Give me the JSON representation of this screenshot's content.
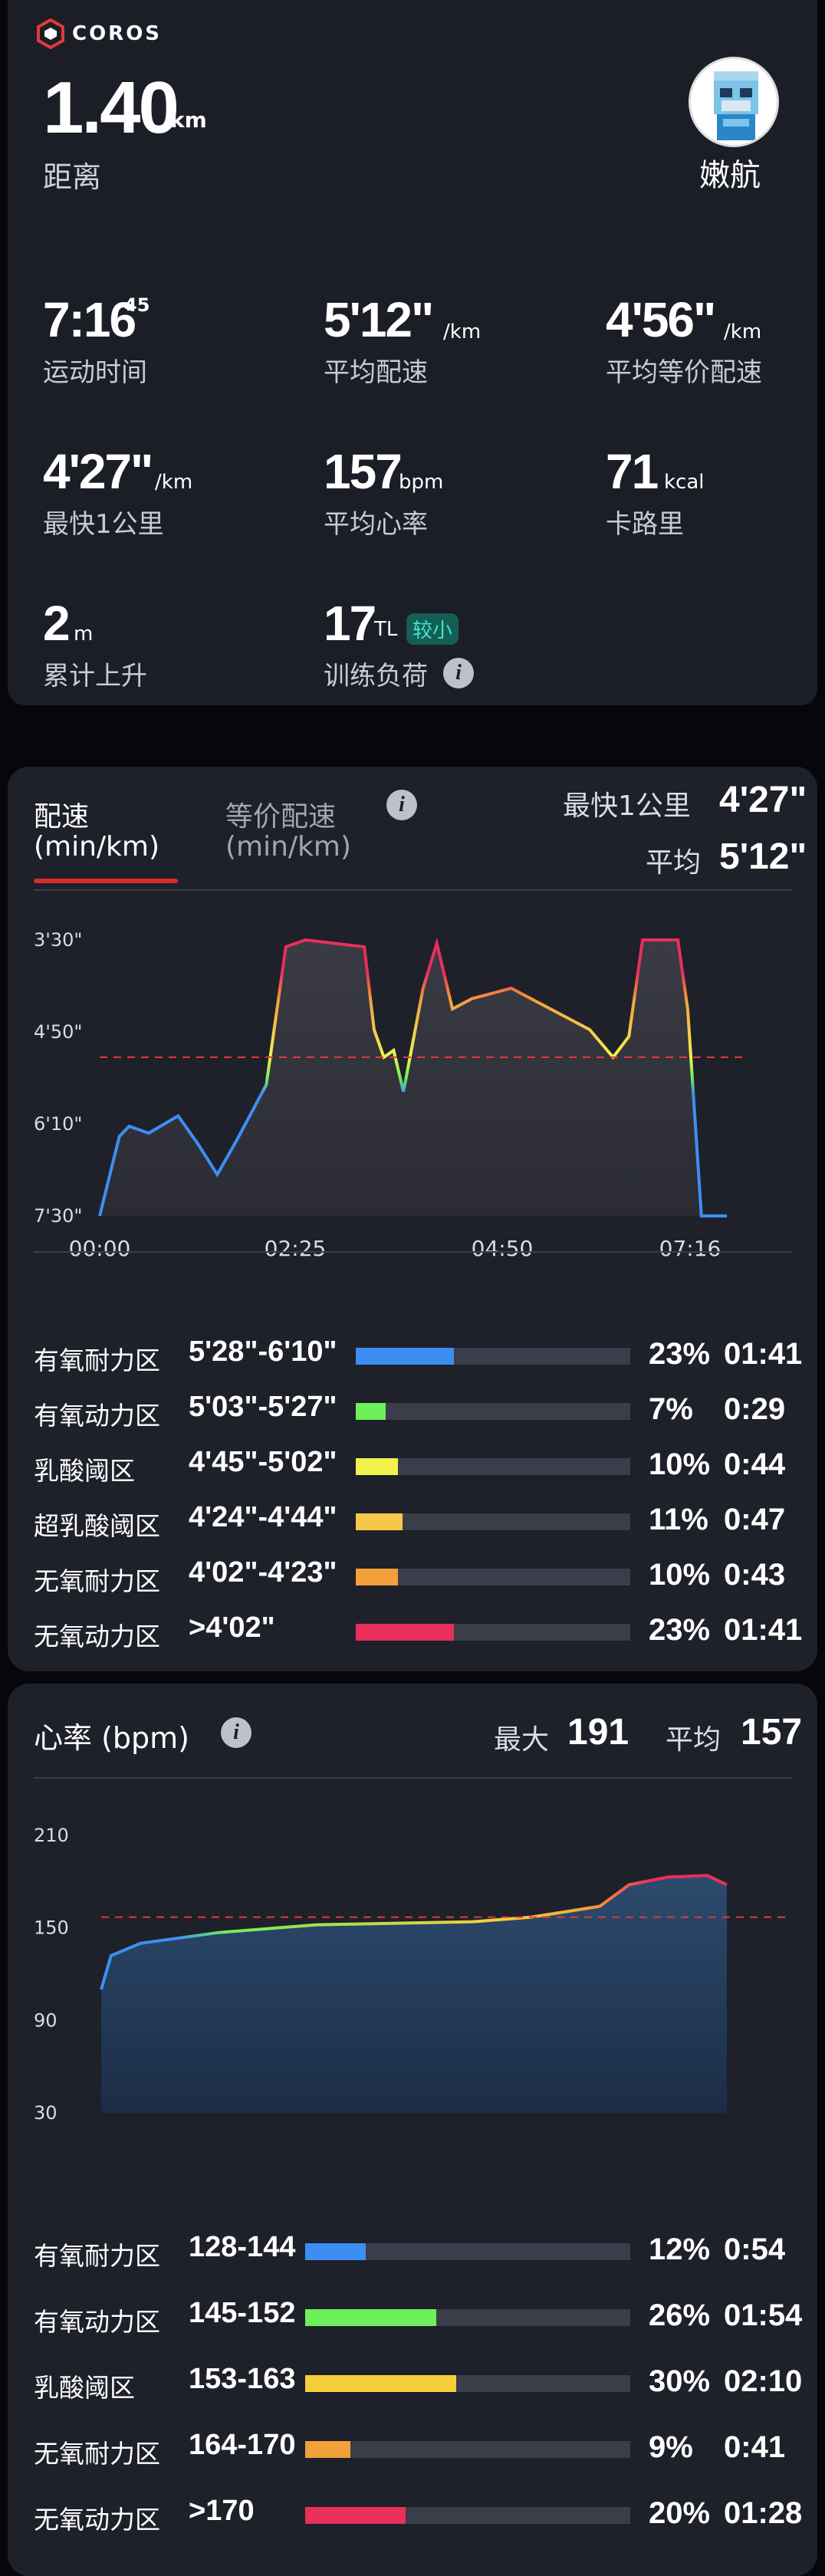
{
  "summary": {
    "brand": "COROS",
    "distance": "1.40",
    "distance_unit": "km",
    "distance_label": "距离",
    "user": "嫩航",
    "stats": [
      {
        "value": "7:16",
        "sup": "45",
        "unit": "",
        "label": "运动时间"
      },
      {
        "value": "5'12\"",
        "unit": "/km",
        "label": "平均配速"
      },
      {
        "value": "4'56\"",
        "unit": "/km",
        "label": "平均等价配速"
      },
      {
        "value": "4'27\"",
        "unit": "/km",
        "label": "最快1公里"
      },
      {
        "value": "157",
        "unit": "bpm",
        "label": "平均心率"
      },
      {
        "value": "71",
        "unit": "kcal",
        "label": "卡路里"
      },
      {
        "value": "2",
        "unit": "m",
        "label": "累计上升"
      },
      {
        "value": "17",
        "unit": "TL",
        "label": "训练负荷",
        "tag": "较小"
      }
    ]
  },
  "pace": {
    "tab_active": "配速",
    "tab_active_unit": "(min/km)",
    "tab_other": "等价配速",
    "tab_other_unit": "(min/km)",
    "fastest_label": "最快1公里",
    "fastest_value": "4'27\"",
    "avg_label": "平均",
    "avg_value": "5'12\"",
    "zones": [
      {
        "name": "有氧耐力区",
        "range": "5'28\"-6'10\"",
        "pct": "23%",
        "time": "01:41",
        "color": "#3d8ef2",
        "frac": 0.23
      },
      {
        "name": "有氧动力区",
        "range": "5'03\"-5'27\"",
        "pct": "7%",
        "time": "0:29",
        "color": "#6ef05a",
        "frac": 0.07
      },
      {
        "name": "乳酸阈区",
        "range": "4'45\"-5'02\"",
        "pct": "10%",
        "time": "0:44",
        "color": "#f2f24a",
        "frac": 0.1
      },
      {
        "name": "超乳酸阈区",
        "range": "4'24\"-4'44\"",
        "pct": "11%",
        "time": "0:47",
        "color": "#f5c84a",
        "frac": 0.11
      },
      {
        "name": "无氧耐力区",
        "range": "4'02\"-4'23\"",
        "pct": "10%",
        "time": "0:43",
        "color": "#f2a03a",
        "frac": 0.1
      },
      {
        "name": "无氧动力区",
        "range": ">4'02\"",
        "pct": "23%",
        "time": "01:41",
        "color": "#e8305a",
        "frac": 0.23
      }
    ]
  },
  "hr": {
    "title": "心率 (bpm)",
    "max_label": "最大",
    "max_value": "191",
    "avg_label": "平均",
    "avg_value": "157",
    "zones": [
      {
        "name": "有氧耐力区",
        "range": "128-144",
        "pct": "12%",
        "time": "0:54",
        "color": "#3d8ef2",
        "frac": 0.12
      },
      {
        "name": "有氧动力区",
        "range": "145-152",
        "pct": "26%",
        "time": "01:54",
        "color": "#6ef05a",
        "frac": 0.26
      },
      {
        "name": "乳酸阈区",
        "range": "153-163",
        "pct": "30%",
        "time": "02:10",
        "color": "#f5cf3a",
        "frac": 0.3
      },
      {
        "name": "无氧耐力区",
        "range": "164-170",
        "pct": "9%",
        "time": "0:41",
        "color": "#f2a03a",
        "frac": 0.09
      },
      {
        "name": "无氧动力区",
        "range": ">170",
        "pct": "20%",
        "time": "01:28",
        "color": "#e8305a",
        "frac": 0.2
      }
    ]
  },
  "chart_data": [
    {
      "type": "line",
      "series": [
        {
          "values": [
            [
              0,
              7.5
            ],
            [
              10,
              6.35
            ],
            [
              15,
              6.2
            ],
            [
              25,
              6.3
            ],
            [
              40,
              6.05
            ],
            [
              50,
              6.45
            ],
            [
              60,
              6.9
            ],
            [
              70,
              6.4
            ],
            [
              85,
              5.6
            ],
            [
              95,
              3.6
            ],
            [
              105,
              3.5
            ],
            [
              135,
              3.6
            ],
            [
              140,
              4.8
            ],
            [
              145,
              5.2
            ],
            [
              150,
              5.1
            ],
            [
              155,
              5.7
            ],
            [
              165,
              4.2
            ],
            [
              172,
              3.55
            ],
            [
              180,
              4.5
            ],
            [
              190,
              4.35
            ],
            [
              210,
              4.2
            ],
            [
              230,
              4.5
            ],
            [
              250,
              4.8
            ],
            [
              262,
              5.2
            ],
            [
              270,
              4.9
            ],
            [
              277,
              3.5
            ],
            [
              295,
              3.5
            ],
            [
              300,
              4.5
            ],
            [
              307,
              7.5
            ],
            [
              320,
              7.5
            ]
          ]
        }
      ],
      "x_ticks": [
        "00:00",
        "02:25",
        "04:50",
        "07:16"
      ],
      "y_ticks": [
        "3'30\"",
        "4'50\"",
        "6'10\"",
        "7'30\""
      ],
      "ref_label": "5'12\""
    },
    {
      "type": "area",
      "series": [
        {
          "values": [
            [
              0,
              110
            ],
            [
              5,
              132
            ],
            [
              20,
              140
            ],
            [
              60,
              147
            ],
            [
              110,
              152
            ],
            [
              150,
              153
            ],
            [
              190,
              154
            ],
            [
              220,
              157
            ],
            [
              255,
              164
            ],
            [
              270,
              178
            ],
            [
              290,
              183
            ],
            [
              310,
              184
            ],
            [
              320,
              178
            ]
          ]
        }
      ],
      "x_ticks": [
        "00:00",
        "02:25",
        "04:50",
        "07:16"
      ],
      "y_ticks": [
        "210",
        "150",
        "90",
        "30"
      ],
      "ref": 157
    }
  ]
}
